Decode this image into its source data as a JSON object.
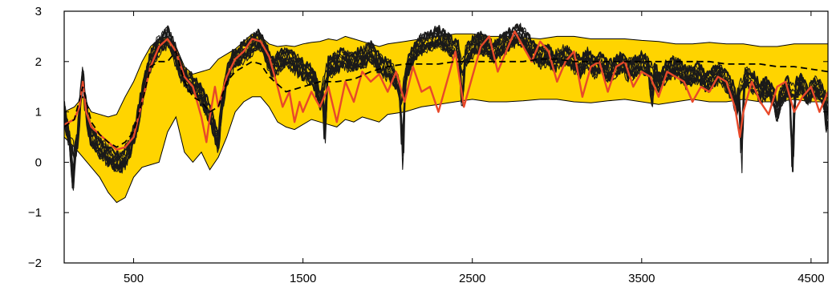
{
  "chart_data": {
    "type": "line",
    "title": "",
    "xlabel": "",
    "ylabel": "",
    "xlim": [
      90,
      4600
    ],
    "ylim": [
      -2,
      3
    ],
    "x_ticks": [
      500,
      1500,
      2500,
      3500,
      4500
    ],
    "x_tick_labels": [
      "500",
      "1500",
      "2500",
      "3500",
      "4500"
    ],
    "y_ticks": [
      -2,
      -1,
      0,
      1,
      2,
      3
    ],
    "y_tick_labels": [
      "−2",
      "−1",
      "0",
      "1",
      "2",
      "3"
    ],
    "grid": false,
    "legend": "none",
    "colors": {
      "band": "#FFD400",
      "band_edge": "#000000",
      "black_series": "#1a1a1a",
      "red_series": "#E8492A",
      "dashed_mean": "#000000"
    },
    "band": {
      "x": [
        90,
        150,
        200,
        250,
        300,
        350,
        400,
        450,
        500,
        550,
        600,
        650,
        700,
        750,
        800,
        850,
        900,
        950,
        1000,
        1050,
        1100,
        1150,
        1200,
        1250,
        1300,
        1350,
        1400,
        1450,
        1500,
        1550,
        1600,
        1650,
        1700,
        1750,
        1800,
        1850,
        1900,
        1950,
        2000,
        2100,
        2200,
        2300,
        2400,
        2500,
        2600,
        2700,
        2800,
        2900,
        3000,
        3100,
        3200,
        3300,
        3400,
        3500,
        3600,
        3700,
        3800,
        3900,
        4000,
        4100,
        4200,
        4300,
        4400,
        4500,
        4600
      ],
      "upper": [
        1.0,
        1.1,
        1.3,
        1.0,
        0.95,
        0.9,
        0.95,
        1.3,
        1.6,
        2.0,
        2.3,
        2.45,
        2.5,
        2.3,
        1.9,
        1.75,
        1.8,
        1.85,
        2.05,
        2.15,
        2.25,
        2.4,
        2.55,
        2.5,
        2.35,
        2.3,
        2.32,
        2.3,
        2.35,
        2.38,
        2.4,
        2.45,
        2.42,
        2.5,
        2.45,
        2.4,
        2.35,
        2.3,
        2.35,
        2.4,
        2.45,
        2.5,
        2.55,
        2.55,
        2.5,
        2.5,
        2.48,
        2.45,
        2.5,
        2.5,
        2.45,
        2.45,
        2.45,
        2.42,
        2.4,
        2.35,
        2.35,
        2.38,
        2.35,
        2.35,
        2.3,
        2.3,
        2.35,
        2.35,
        2.35
      ],
      "lower": [
        0.5,
        0.3,
        0.1,
        -0.1,
        -0.3,
        -0.6,
        -0.8,
        -0.7,
        -0.3,
        -0.1,
        -0.05,
        0.0,
        0.6,
        0.9,
        0.2,
        0.0,
        0.2,
        -0.15,
        0.1,
        0.5,
        1.0,
        1.2,
        1.3,
        1.3,
        1.1,
        0.8,
        0.7,
        0.65,
        0.75,
        0.85,
        0.8,
        0.75,
        0.7,
        0.85,
        0.8,
        0.9,
        0.85,
        0.8,
        0.95,
        1.0,
        1.1,
        1.15,
        1.2,
        1.25,
        1.2,
        1.2,
        1.22,
        1.25,
        1.25,
        1.2,
        1.18,
        1.22,
        1.25,
        1.2,
        1.15,
        1.2,
        1.25,
        1.2,
        1.2,
        1.25,
        1.2,
        1.2,
        1.25,
        1.2,
        1.2
      ]
    },
    "dashed_mean": {
      "x": [
        90,
        150,
        200,
        250,
        300,
        350,
        400,
        450,
        500,
        550,
        600,
        650,
        700,
        750,
        800,
        850,
        900,
        950,
        1000,
        1050,
        1100,
        1150,
        1200,
        1250,
        1300,
        1400,
        1500,
        1600,
        1700,
        1800,
        1900,
        2000,
        2100,
        2200,
        2300,
        2400,
        2500,
        2600,
        2700,
        2800,
        2900,
        3000,
        3100,
        3200,
        3300,
        3400,
        3500,
        3600,
        3700,
        3800,
        3900,
        4000,
        4100,
        4200,
        4300,
        4400,
        4500,
        4600
      ],
      "y": [
        0.7,
        0.85,
        1.5,
        0.8,
        0.55,
        0.4,
        0.3,
        0.4,
        0.6,
        1.2,
        1.9,
        2.0,
        2.0,
        2.2,
        1.6,
        1.3,
        1.2,
        1.0,
        1.1,
        1.6,
        1.8,
        1.9,
        2.0,
        1.95,
        1.7,
        1.4,
        1.5,
        1.6,
        1.6,
        1.65,
        1.8,
        1.9,
        1.95,
        1.95,
        1.95,
        2.0,
        2.0,
        2.0,
        2.0,
        2.0,
        2.05,
        2.05,
        2.0,
        2.0,
        2.0,
        2.0,
        2.0,
        2.0,
        2.0,
        2.0,
        2.0,
        1.95,
        1.95,
        1.95,
        1.9,
        1.9,
        1.85,
        1.8
      ]
    },
    "red_series": {
      "x": [
        90,
        120,
        150,
        180,
        200,
        220,
        250,
        300,
        350,
        400,
        450,
        500,
        550,
        600,
        650,
        700,
        750,
        800,
        850,
        900,
        930,
        950,
        980,
        1000,
        1050,
        1100,
        1150,
        1200,
        1250,
        1300,
        1350,
        1380,
        1420,
        1450,
        1480,
        1500,
        1550,
        1600,
        1650,
        1700,
        1750,
        1800,
        1850,
        1900,
        1950,
        2000,
        2050,
        2100,
        2150,
        2200,
        2250,
        2300,
        2350,
        2400,
        2450,
        2500,
        2550,
        2600,
        2650,
        2700,
        2750,
        2800,
        2850,
        2900,
        2950,
        3000,
        3050,
        3100,
        3150,
        3200,
        3250,
        3300,
        3350,
        3400,
        3450,
        3500,
        3550,
        3600,
        3650,
        3700,
        3750,
        3800,
        3850,
        3900,
        3950,
        4000,
        4050,
        4080,
        4100,
        4150,
        4200,
        4250,
        4300,
        4350,
        4400,
        4450,
        4500,
        4550,
        4600
      ],
      "y": [
        0.75,
        0.8,
        0.85,
        1.1,
        1.6,
        1.0,
        0.7,
        0.55,
        0.4,
        0.25,
        0.3,
        0.5,
        1.2,
        1.9,
        2.3,
        2.45,
        2.2,
        1.7,
        1.5,
        0.9,
        0.4,
        0.9,
        1.5,
        1.1,
        1.7,
        2.05,
        2.2,
        2.45,
        2.4,
        2.1,
        1.5,
        1.1,
        1.4,
        0.8,
        1.2,
        1.0,
        1.4,
        1.1,
        1.5,
        0.8,
        1.6,
        1.2,
        1.8,
        1.6,
        1.75,
        1.4,
        1.8,
        1.2,
        1.9,
        1.4,
        1.5,
        1.0,
        1.6,
        2.2,
        1.1,
        1.7,
        2.3,
        2.5,
        1.8,
        2.2,
        2.6,
        2.3,
        2.0,
        2.4,
        2.2,
        1.6,
        2.0,
        2.2,
        1.3,
        1.9,
        2.0,
        1.4,
        1.9,
        2.0,
        1.5,
        1.8,
        1.7,
        1.3,
        1.8,
        1.7,
        1.6,
        1.2,
        1.5,
        1.4,
        1.7,
        1.6,
        1.1,
        0.5,
        1.0,
        1.6,
        1.2,
        0.95,
        1.5,
        1.6,
        1.0,
        1.3,
        1.5,
        1.0,
        1.4
      ]
    },
    "black_series_count": 11,
    "black_series_base": {
      "x": [
        90,
        110,
        130,
        150,
        170,
        190,
        200,
        210,
        230,
        250,
        280,
        300,
        330,
        360,
        400,
        440,
        480,
        520,
        560,
        600,
        640,
        680,
        710,
        740,
        770,
        800,
        830,
        860,
        890,
        920,
        950,
        980,
        1000,
        1020,
        1050,
        1080,
        1110,
        1150,
        1190,
        1230,
        1260,
        1290,
        1320,
        1360,
        1400,
        1440,
        1480,
        1520,
        1560,
        1580,
        1600,
        1620,
        1650,
        1700,
        1740,
        1780,
        1820,
        1860,
        1900,
        1940,
        1980,
        2020,
        2060,
        2080,
        2100,
        2140,
        2180,
        2220,
        2260,
        2300,
        2340,
        2380,
        2420,
        2440,
        2460,
        2500,
        2540,
        2580,
        2620,
        2660,
        2700,
        2740,
        2780,
        2820,
        2860,
        2900,
        2940,
        2980,
        3020,
        3060,
        3100,
        3140,
        3180,
        3220,
        3260,
        3300,
        3340,
        3380,
        3420,
        3460,
        3500,
        3540,
        3580,
        3600,
        3640,
        3680,
        3720,
        3760,
        3800,
        3840,
        3880,
        3920,
        3960,
        4000,
        4040,
        4060,
        4080,
        4120,
        4160,
        4200,
        4240,
        4280,
        4300,
        4320,
        4360,
        4400,
        4440,
        4480,
        4520,
        4560,
        4600
      ],
      "y": [
        1.0,
        0.6,
        0.4,
        0.2,
        0.5,
        1.4,
        1.8,
        1.3,
        0.8,
        0.5,
        0.4,
        0.3,
        0.2,
        0.1,
        0.0,
        0.05,
        0.3,
        0.8,
        1.5,
        2.0,
        2.3,
        2.45,
        2.5,
        2.2,
        1.9,
        1.7,
        1.6,
        1.5,
        1.4,
        1.2,
        1.0,
        0.6,
        0.4,
        1.1,
        1.7,
        2.0,
        2.1,
        2.2,
        2.3,
        2.45,
        2.4,
        2.1,
        1.9,
        2.0,
        2.1,
        2.0,
        1.9,
        1.8,
        1.7,
        1.5,
        1.2,
        1.6,
        1.9,
        2.0,
        2.1,
        2.0,
        2.05,
        2.1,
        2.2,
        2.0,
        1.9,
        1.8,
        1.6,
        1.2,
        1.7,
        2.1,
        2.3,
        2.4,
        2.45,
        2.5,
        2.4,
        2.3,
        2.2,
        1.9,
        2.1,
        2.3,
        2.4,
        2.3,
        2.2,
        2.3,
        2.4,
        2.5,
        2.55,
        2.4,
        2.2,
        2.1,
        2.15,
        2.0,
        2.1,
        2.15,
        2.0,
        1.9,
        2.1,
        1.9,
        2.0,
        1.8,
        1.9,
        2.0,
        1.85,
        1.9,
        2.0,
        1.9,
        1.8,
        1.6,
        1.8,
        1.9,
        1.85,
        1.7,
        1.75,
        1.8,
        1.6,
        1.7,
        1.8,
        1.6,
        1.4,
        1.1,
        1.5,
        1.7,
        1.6,
        1.4,
        1.5,
        1.3,
        1.0,
        1.3,
        1.5,
        1.4,
        1.6,
        1.3,
        1.5,
        1.4,
        1.2
      ],
      "dips": [
        {
          "x": 140,
          "y": -0.6
        },
        {
          "x": 1630,
          "y": 0.2
        },
        {
          "x": 2090,
          "y": -0.2
        },
        {
          "x": 2440,
          "y": 0.8
        },
        {
          "x": 3560,
          "y": 1.0
        },
        {
          "x": 4090,
          "y": -0.2
        },
        {
          "x": 4390,
          "y": -0.5
        },
        {
          "x": 4590,
          "y": 0.6
        }
      ]
    }
  }
}
